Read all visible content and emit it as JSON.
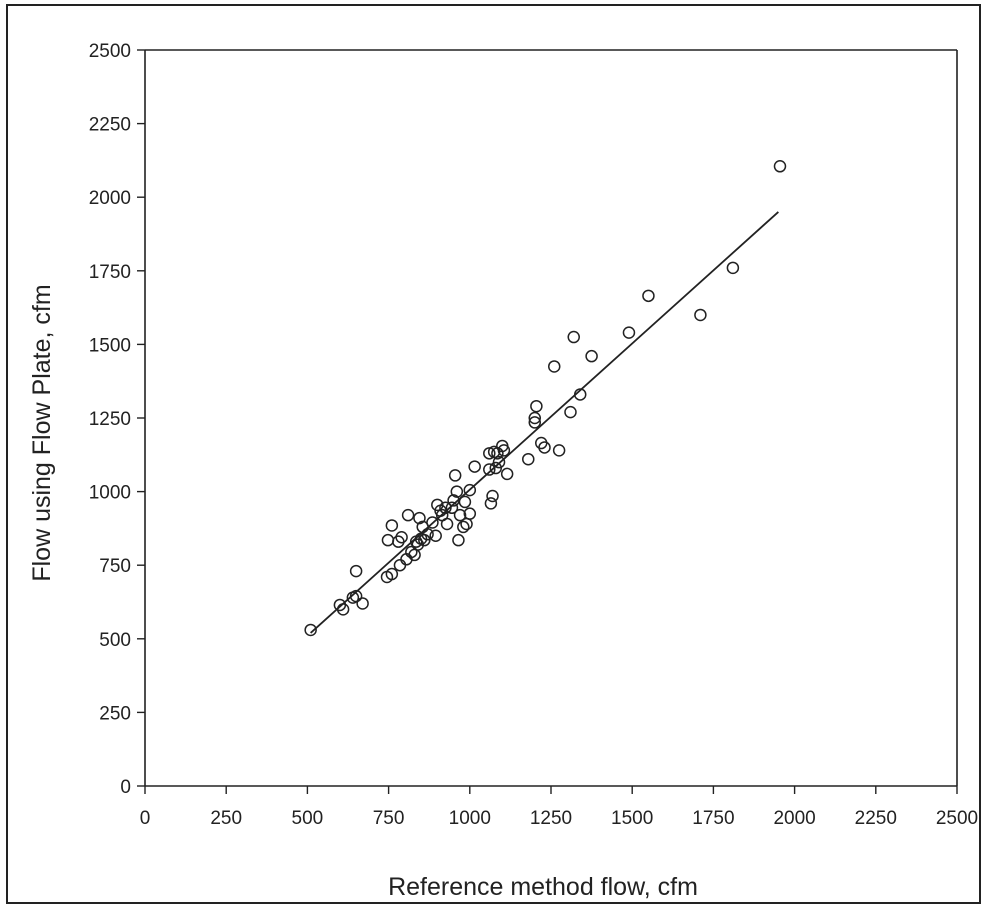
{
  "chart_data": {
    "type": "scatter",
    "title": "",
    "xlabel": "Reference method flow, cfm",
    "ylabel": "Flow using Flow Plate, cfm",
    "xlim": [
      0,
      2500
    ],
    "ylim": [
      0,
      2500
    ],
    "x_ticks": [
      "0",
      "250",
      "500",
      "750",
      "1000",
      "1250",
      "1500",
      "1750",
      "2000",
      "2250",
      "2500"
    ],
    "y_ticks": [
      "0",
      "250",
      "500",
      "750",
      "1000",
      "1250",
      "1500",
      "1750",
      "2000",
      "2250",
      "2500"
    ],
    "grid": false,
    "legend": "none",
    "marker": "open-circle",
    "colors": {
      "ink": "#222222",
      "background": "#ffffff"
    },
    "series": [
      {
        "points": [
          [
            510,
            530
          ],
          [
            600,
            615
          ],
          [
            610,
            600
          ],
          [
            640,
            640
          ],
          [
            650,
            645
          ],
          [
            650,
            730
          ],
          [
            670,
            620
          ],
          [
            745,
            710
          ],
          [
            748,
            835
          ],
          [
            760,
            720
          ],
          [
            760,
            885
          ],
          [
            780,
            830
          ],
          [
            785,
            750
          ],
          [
            790,
            845
          ],
          [
            805,
            770
          ],
          [
            810,
            920
          ],
          [
            820,
            795
          ],
          [
            830,
            785
          ],
          [
            835,
            830
          ],
          [
            840,
            820
          ],
          [
            845,
            910
          ],
          [
            850,
            840
          ],
          [
            855,
            880
          ],
          [
            860,
            835
          ],
          [
            870,
            855
          ],
          [
            885,
            895
          ],
          [
            895,
            850
          ],
          [
            900,
            955
          ],
          [
            910,
            935
          ],
          [
            915,
            920
          ],
          [
            925,
            945
          ],
          [
            930,
            890
          ],
          [
            945,
            945
          ],
          [
            950,
            970
          ],
          [
            955,
            1055
          ],
          [
            960,
            1000
          ],
          [
            965,
            835
          ],
          [
            970,
            920
          ],
          [
            980,
            880
          ],
          [
            985,
            965
          ],
          [
            990,
            890
          ],
          [
            1000,
            1005
          ],
          [
            1000,
            925
          ],
          [
            1015,
            1085
          ],
          [
            1060,
            1130
          ],
          [
            1060,
            1075
          ],
          [
            1065,
            960
          ],
          [
            1070,
            985
          ],
          [
            1075,
            1135
          ],
          [
            1080,
            1080
          ],
          [
            1085,
            1130
          ],
          [
            1090,
            1100
          ],
          [
            1100,
            1155
          ],
          [
            1105,
            1140
          ],
          [
            1115,
            1060
          ],
          [
            1180,
            1110
          ],
          [
            1200,
            1250
          ],
          [
            1200,
            1235
          ],
          [
            1205,
            1290
          ],
          [
            1220,
            1165
          ],
          [
            1230,
            1150
          ],
          [
            1260,
            1425
          ],
          [
            1275,
            1140
          ],
          [
            1310,
            1270
          ],
          [
            1320,
            1525
          ],
          [
            1340,
            1330
          ],
          [
            1375,
            1460
          ],
          [
            1490,
            1540
          ],
          [
            1550,
            1665
          ],
          [
            1710,
            1600
          ],
          [
            1810,
            1760
          ],
          [
            1955,
            2105
          ]
        ]
      }
    ],
    "fit_line": {
      "x": [
        510,
        1950
      ],
      "y": [
        520,
        1950
      ]
    }
  }
}
